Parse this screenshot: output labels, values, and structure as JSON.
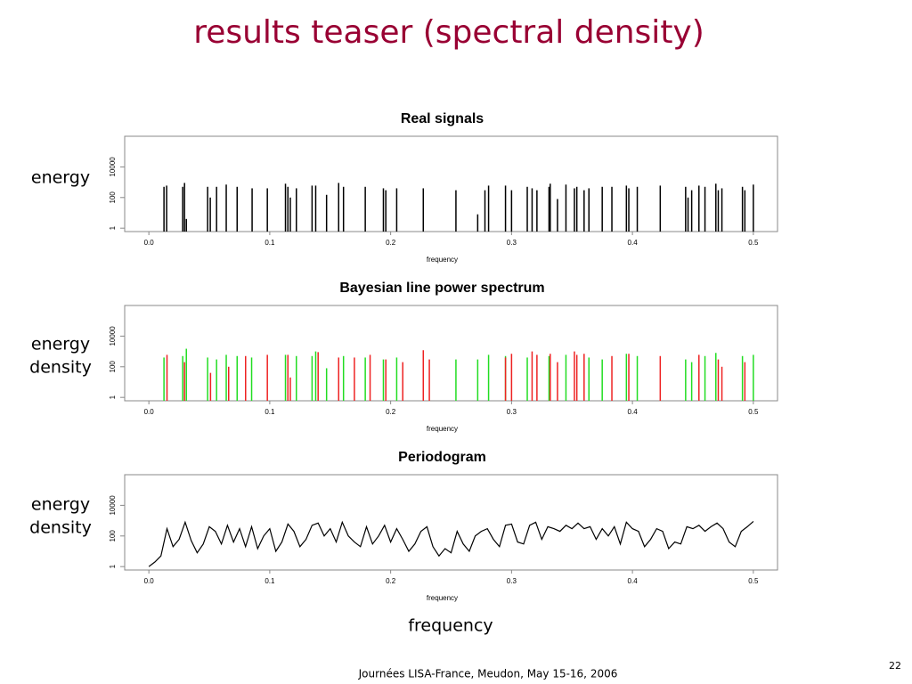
{
  "slide": {
    "title": "results teaser (spectral density)",
    "side_labels": [
      [
        "energy"
      ],
      [
        "energy",
        "density"
      ],
      [
        "energy",
        "density"
      ]
    ],
    "bottom_label": "frequency",
    "footer": "Journées LISA-France, Meudon, May 15-16,  2006",
    "page_number": "22"
  },
  "chart_data": [
    {
      "type": "spike",
      "title": "Real signals",
      "xlabel": "frequency",
      "log_y": true,
      "xlim": [
        -0.02,
        0.52
      ],
      "ylim": [
        0.6,
        1000000
      ],
      "xticks": [
        {
          "value": 0,
          "label": "0.0"
        },
        {
          "value": 0.1,
          "label": "0.1"
        },
        {
          "value": 0.2,
          "label": "0.2"
        },
        {
          "value": 0.3,
          "label": "0.3"
        },
        {
          "value": 0.4,
          "label": "0.4"
        },
        {
          "value": 0.5,
          "label": "0.5"
        }
      ],
      "yticks": [
        1,
        100,
        10000
      ],
      "series": [
        {
          "color": "#000000",
          "x": [
            0.0125,
            0.0147,
            0.028,
            0.0295,
            0.031,
            0.0486,
            0.0508,
            0.056,
            0.064,
            0.073,
            0.0854,
            0.098,
            0.113,
            0.115,
            0.117,
            0.122,
            0.135,
            0.138,
            0.147,
            0.157,
            0.161,
            0.179,
            0.194,
            0.196,
            0.205,
            0.227,
            0.254,
            0.272,
            0.278,
            0.281,
            0.295,
            0.3,
            0.313,
            0.317,
            0.321,
            0.331,
            0.332,
            0.338,
            0.345,
            0.352,
            0.354,
            0.36,
            0.364,
            0.375,
            0.383,
            0.395,
            0.397,
            0.404,
            0.423,
            0.444,
            0.446,
            0.449,
            0.455,
            0.46,
            0.469,
            0.471,
            0.474,
            0.491,
            0.493,
            0.5
          ],
          "values": [
            500,
            600,
            500,
            900,
            4,
            500,
            100,
            500,
            700,
            500,
            400,
            400,
            800,
            500,
            100,
            400,
            600,
            600,
            150,
            900,
            500,
            500,
            400,
            300,
            400,
            400,
            300,
            8,
            300,
            600,
            600,
            300,
            500,
            400,
            300,
            500,
            800,
            80,
            700,
            400,
            500,
            300,
            400,
            500,
            500,
            600,
            400,
            500,
            600,
            500,
            100,
            300,
            600,
            500,
            800,
            300,
            400,
            500,
            300,
            700
          ]
        }
      ]
    },
    {
      "type": "spike",
      "title": "Bayesian line power spectrum",
      "xlabel": "frequency",
      "log_y": true,
      "xlim": [
        -0.02,
        0.52
      ],
      "ylim": [
        0.6,
        1000000
      ],
      "xticks": [
        {
          "value": 0,
          "label": "0.0"
        },
        {
          "value": 0.1,
          "label": "0.1"
        },
        {
          "value": 0.2,
          "label": "0.2"
        },
        {
          "value": 0.3,
          "label": "0.3"
        },
        {
          "value": 0.4,
          "label": "0.4"
        },
        {
          "value": 0.5,
          "label": "0.5"
        }
      ],
      "yticks": [
        1,
        100,
        10000
      ],
      "series": [
        {
          "color": "#22dd22",
          "x": [
            0.0125,
            0.028,
            0.031,
            0.0486,
            0.056,
            0.064,
            0.073,
            0.085,
            0.113,
            0.122,
            0.135,
            0.138,
            0.147,
            0.161,
            0.179,
            0.194,
            0.205,
            0.254,
            0.272,
            0.281,
            0.295,
            0.313,
            0.331,
            0.345,
            0.364,
            0.375,
            0.395,
            0.404,
            0.444,
            0.449,
            0.46,
            0.469,
            0.491,
            0.5
          ],
          "values": [
            400,
            500,
            1500,
            400,
            300,
            600,
            500,
            400,
            600,
            500,
            500,
            1000,
            80,
            500,
            400,
            300,
            400,
            300,
            300,
            600,
            500,
            400,
            500,
            600,
            400,
            300,
            700,
            500,
            300,
            200,
            500,
            800,
            500,
            600
          ]
        },
        {
          "color": "#ee2222",
          "x": [
            0.015,
            0.0295,
            0.051,
            0.066,
            0.08,
            0.098,
            0.115,
            0.117,
            0.14,
            0.157,
            0.17,
            0.183,
            0.196,
            0.21,
            0.227,
            0.232,
            0.295,
            0.3,
            0.317,
            0.321,
            0.332,
            0.338,
            0.352,
            0.354,
            0.36,
            0.383,
            0.397,
            0.423,
            0.455,
            0.471,
            0.474,
            0.493
          ],
          "values": [
            600,
            200,
            40,
            100,
            500,
            600,
            600,
            20,
            900,
            400,
            400,
            600,
            300,
            200,
            1200,
            300,
            400,
            700,
            1000,
            600,
            700,
            200,
            1000,
            600,
            700,
            500,
            700,
            500,
            600,
            300,
            100,
            200
          ]
        }
      ]
    },
    {
      "type": "line",
      "title": "Periodogram",
      "xlabel": "frequency",
      "log_y": true,
      "xlim": [
        -0.02,
        0.52
      ],
      "ylim": [
        0.6,
        1000000
      ],
      "xticks": [
        {
          "value": 0,
          "label": "0.0"
        },
        {
          "value": 0.1,
          "label": "0.1"
        },
        {
          "value": 0.2,
          "label": "0.2"
        },
        {
          "value": 0.3,
          "label": "0.3"
        },
        {
          "value": 0.4,
          "label": "0.4"
        },
        {
          "value": 0.5,
          "label": "0.5"
        }
      ],
      "yticks": [
        1,
        100,
        10000
      ],
      "series": [
        {
          "color": "#000000",
          "x": [
            0,
            0.005,
            0.01,
            0.015,
            0.02,
            0.025,
            0.03,
            0.035,
            0.04,
            0.045,
            0.05,
            0.055,
            0.06,
            0.065,
            0.07,
            0.075,
            0.08,
            0.085,
            0.09,
            0.095,
            0.1,
            0.105,
            0.11,
            0.115,
            0.12,
            0.125,
            0.13,
            0.135,
            0.14,
            0.145,
            0.15,
            0.155,
            0.16,
            0.165,
            0.17,
            0.175,
            0.18,
            0.185,
            0.19,
            0.195,
            0.2,
            0.205,
            0.21,
            0.215,
            0.22,
            0.225,
            0.23,
            0.235,
            0.24,
            0.245,
            0.25,
            0.255,
            0.26,
            0.265,
            0.27,
            0.275,
            0.28,
            0.285,
            0.29,
            0.295,
            0.3,
            0.305,
            0.31,
            0.315,
            0.32,
            0.325,
            0.33,
            0.335,
            0.34,
            0.345,
            0.35,
            0.355,
            0.36,
            0.365,
            0.37,
            0.375,
            0.38,
            0.385,
            0.39,
            0.395,
            0.4,
            0.405,
            0.41,
            0.415,
            0.42,
            0.425,
            0.43,
            0.435,
            0.44,
            0.445,
            0.45,
            0.455,
            0.46,
            0.465,
            0.47,
            0.475,
            0.48,
            0.485,
            0.49,
            0.495,
            0.5
          ],
          "values": [
            1,
            2,
            5,
            300,
            20,
            60,
            800,
            50,
            8,
            30,
            400,
            200,
            30,
            500,
            40,
            300,
            20,
            400,
            15,
            100,
            300,
            10,
            40,
            600,
            200,
            20,
            60,
            500,
            700,
            100,
            300,
            40,
            800,
            100,
            40,
            20,
            400,
            30,
            100,
            500,
            40,
            300,
            60,
            10,
            30,
            200,
            400,
            20,
            5,
            15,
            8,
            200,
            30,
            10,
            100,
            200,
            300,
            60,
            20,
            500,
            600,
            40,
            30,
            500,
            800,
            60,
            400,
            300,
            200,
            500,
            300,
            700,
            300,
            400,
            60,
            300,
            100,
            400,
            30,
            800,
            300,
            200,
            20,
            60,
            300,
            200,
            15,
            40,
            30,
            400,
            300,
            500,
            200,
            400,
            700,
            300,
            40,
            20,
            200,
            400,
            900
          ]
        }
      ]
    }
  ]
}
